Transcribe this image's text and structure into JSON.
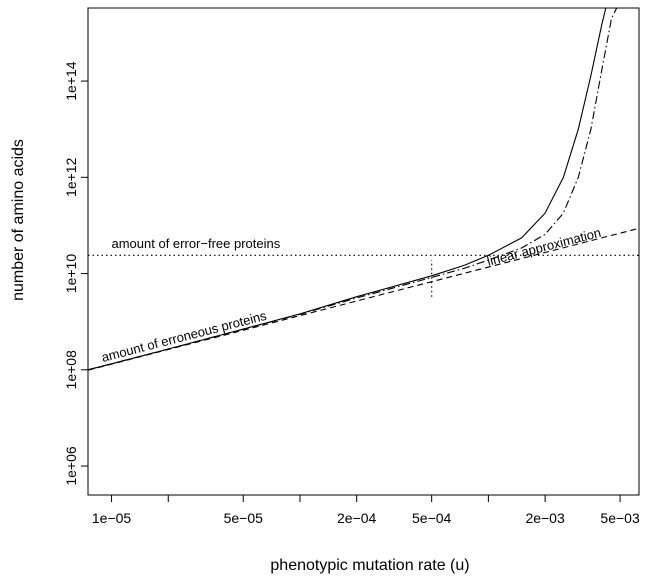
{
  "chart_data": {
    "type": "line",
    "xlabel": "phenotypic mutation rate (u)",
    "ylabel": "number of amino acids",
    "x_scale": "log",
    "y_scale": "log",
    "xlim": [
      7.5e-06,
      0.0063
    ],
    "ylim": [
      250000.0,
      3300000000000000.0
    ],
    "x_ticks": [
      1e-05,
      2e-05,
      5e-05,
      0.0001,
      0.0002,
      0.0005,
      0.001,
      0.002,
      0.005
    ],
    "x_tick_labels": [
      "1e−05",
      "",
      "5e−05",
      "",
      "2e−04",
      "5e−04",
      "",
      "2e−03",
      "5e−03"
    ],
    "y_ticks": [
      1000000.0,
      100000000.0,
      10000000000.0,
      1000000000000.0,
      100000000000000.0
    ],
    "y_tick_labels": [
      "1e+06",
      "1e+08",
      "1e+10",
      "1e+12",
      "1e+14"
    ],
    "grid": false,
    "series": [
      {
        "style": "solid",
        "x": [
          7.5e-06,
          1e-05,
          2e-05,
          5e-05,
          0.0001,
          0.0002,
          0.0005,
          0.00075,
          0.001,
          0.0015,
          0.002,
          0.0025,
          0.003,
          0.0035,
          0.004,
          0.0042
        ],
        "y": [
          100000000.0,
          133000000.0,
          270000000.0,
          700000000.0,
          1450000000.0,
          3300000000.0,
          9000000000.0,
          15000000000.0,
          24000000000.0,
          55000000000.0,
          180000000000.0,
          1000000000000.0,
          10000000000000.0,
          130000000000000.0,
          1500000000000000.0,
          3300000000000000.0
        ]
      },
      {
        "style": "dotdash",
        "x": [
          7.5e-06,
          1e-05,
          2e-05,
          5e-05,
          0.0001,
          0.0002,
          0.0005,
          0.00075,
          0.001,
          0.0015,
          0.002,
          0.0025,
          0.003,
          0.0035,
          0.004,
          0.0045,
          0.0048
        ],
        "y": [
          100000000.0,
          133000000.0,
          270000000.0,
          700000000.0,
          1420000000.0,
          3100000000.0,
          8300000000.0,
          13000000000.0,
          19000000000.0,
          34000000000.0,
          65000000000.0,
          180000000000.0,
          1000000000000.0,
          10000000000000.0,
          170000000000000.0,
          2000000000000000.0,
          3300000000000000.0
        ]
      },
      {
        "style": "dashed",
        "x": [
          7.5e-06,
          0.0063
        ],
        "y": [
          98000000.0,
          87000000000.0
        ]
      },
      {
        "style": "dotted",
        "x": [
          7.5e-06,
          0.0063
        ],
        "y": [
          24000000000.0,
          24000000000.0
        ]
      },
      {
        "style": "dotted",
        "x": [
          0.0005,
          0.0005
        ],
        "y": [
          3300000000.0,
          19000000000.0
        ]
      }
    ],
    "annotations": [
      {
        "text": "amount of error−free proteins",
        "x": 1e-05,
        "y": 34000000000.0,
        "rotate": 0
      },
      {
        "text": "linear approximation",
        "x": 0.001,
        "y": 14500000000.0,
        "rotate": -14.5
      },
      {
        "text": "amount of erroneous proteins",
        "x": 9e-06,
        "y": 145000000.0,
        "rotate": -14.5
      }
    ]
  }
}
